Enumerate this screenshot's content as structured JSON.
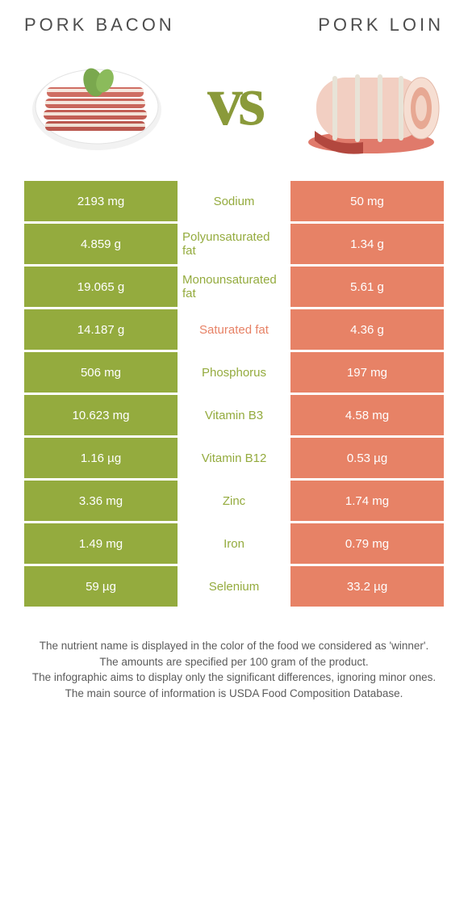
{
  "colors": {
    "left": "#94ab3e",
    "right": "#e78266",
    "winner_left_text": "#94ab3e",
    "winner_right_text": "#e78266"
  },
  "header": {
    "left_title": "Pork bacon",
    "right_title": "Pork loin",
    "vs": "vs"
  },
  "rows": [
    {
      "label": "Sodium",
      "left": "2193 mg",
      "right": "50 mg",
      "winner": "left"
    },
    {
      "label": "Polyunsaturated fat",
      "left": "4.859 g",
      "right": "1.34 g",
      "winner": "left"
    },
    {
      "label": "Monounsaturated fat",
      "left": "19.065 g",
      "right": "5.61 g",
      "winner": "left"
    },
    {
      "label": "Saturated fat",
      "left": "14.187 g",
      "right": "4.36 g",
      "winner": "right"
    },
    {
      "label": "Phosphorus",
      "left": "506 mg",
      "right": "197 mg",
      "winner": "left"
    },
    {
      "label": "Vitamin B3",
      "left": "10.623 mg",
      "right": "4.58 mg",
      "winner": "left"
    },
    {
      "label": "Vitamin B12",
      "left": "1.16 µg",
      "right": "0.53 µg",
      "winner": "left"
    },
    {
      "label": "Zinc",
      "left": "3.36 mg",
      "right": "1.74 mg",
      "winner": "left"
    },
    {
      "label": "Iron",
      "left": "1.49 mg",
      "right": "0.79 mg",
      "winner": "left"
    },
    {
      "label": "Selenium",
      "left": "59 µg",
      "right": "33.2 µg",
      "winner": "left"
    }
  ],
  "footnotes": [
    "The nutrient name is displayed in the color of the food we considered as 'winner'.",
    "The amounts are specified per 100 gram of the product.",
    "The infographic aims to display only the significant differences, ignoring minor ones.",
    "The main source of information is USDA Food Composition Database."
  ]
}
